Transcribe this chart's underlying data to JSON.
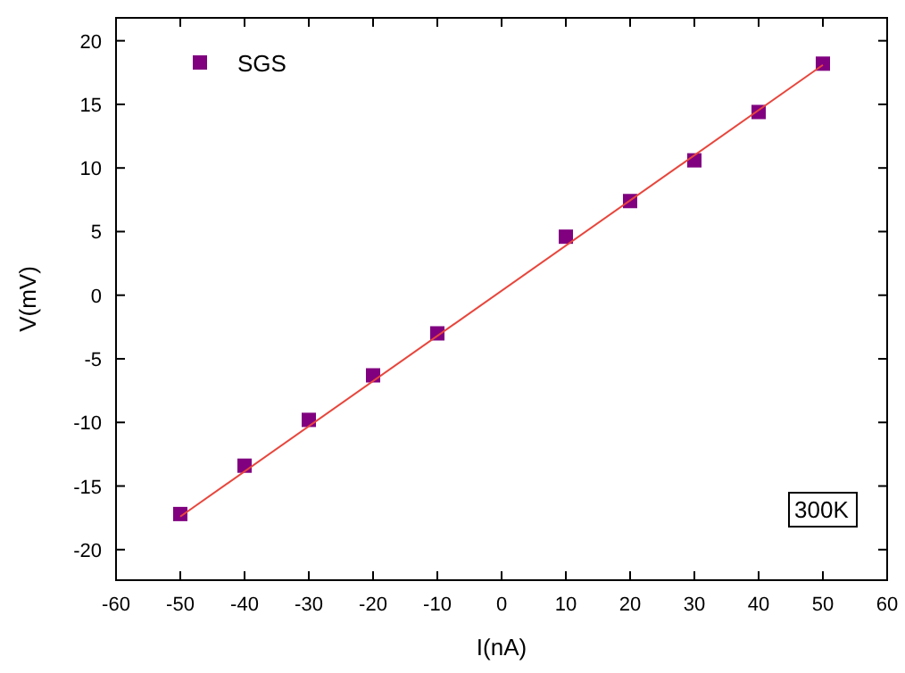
{
  "chart_data": {
    "type": "scatter",
    "xlabel": "I(nA)",
    "ylabel": "V(mV)",
    "xlim": [
      -60,
      60
    ],
    "xticks": [
      -60,
      -50,
      -40,
      -30,
      -20,
      -10,
      0,
      10,
      20,
      30,
      40,
      50,
      60
    ],
    "ylim": [
      -22.4,
      21.8
    ],
    "yticks": [
      -20,
      -15,
      -10,
      -5,
      0,
      5,
      10,
      15,
      20
    ],
    "grid": false,
    "legend": "top left",
    "annotations": [
      "300K"
    ],
    "series": [
      {
        "name": "SGS",
        "marker": "square",
        "color": "#800080",
        "x": [
          -50,
          -40,
          -30,
          -20,
          -10,
          10,
          20,
          30,
          40,
          50
        ],
        "values": [
          -17.2,
          -13.4,
          -9.8,
          -6.3,
          -3.0,
          4.6,
          7.4,
          10.6,
          14.4,
          18.2
        ]
      },
      {
        "type": "line",
        "marker": "none",
        "color": "#e8463c",
        "x": [
          -50,
          50
        ],
        "values": [
          -17.4,
          18.1
        ]
      }
    ]
  }
}
